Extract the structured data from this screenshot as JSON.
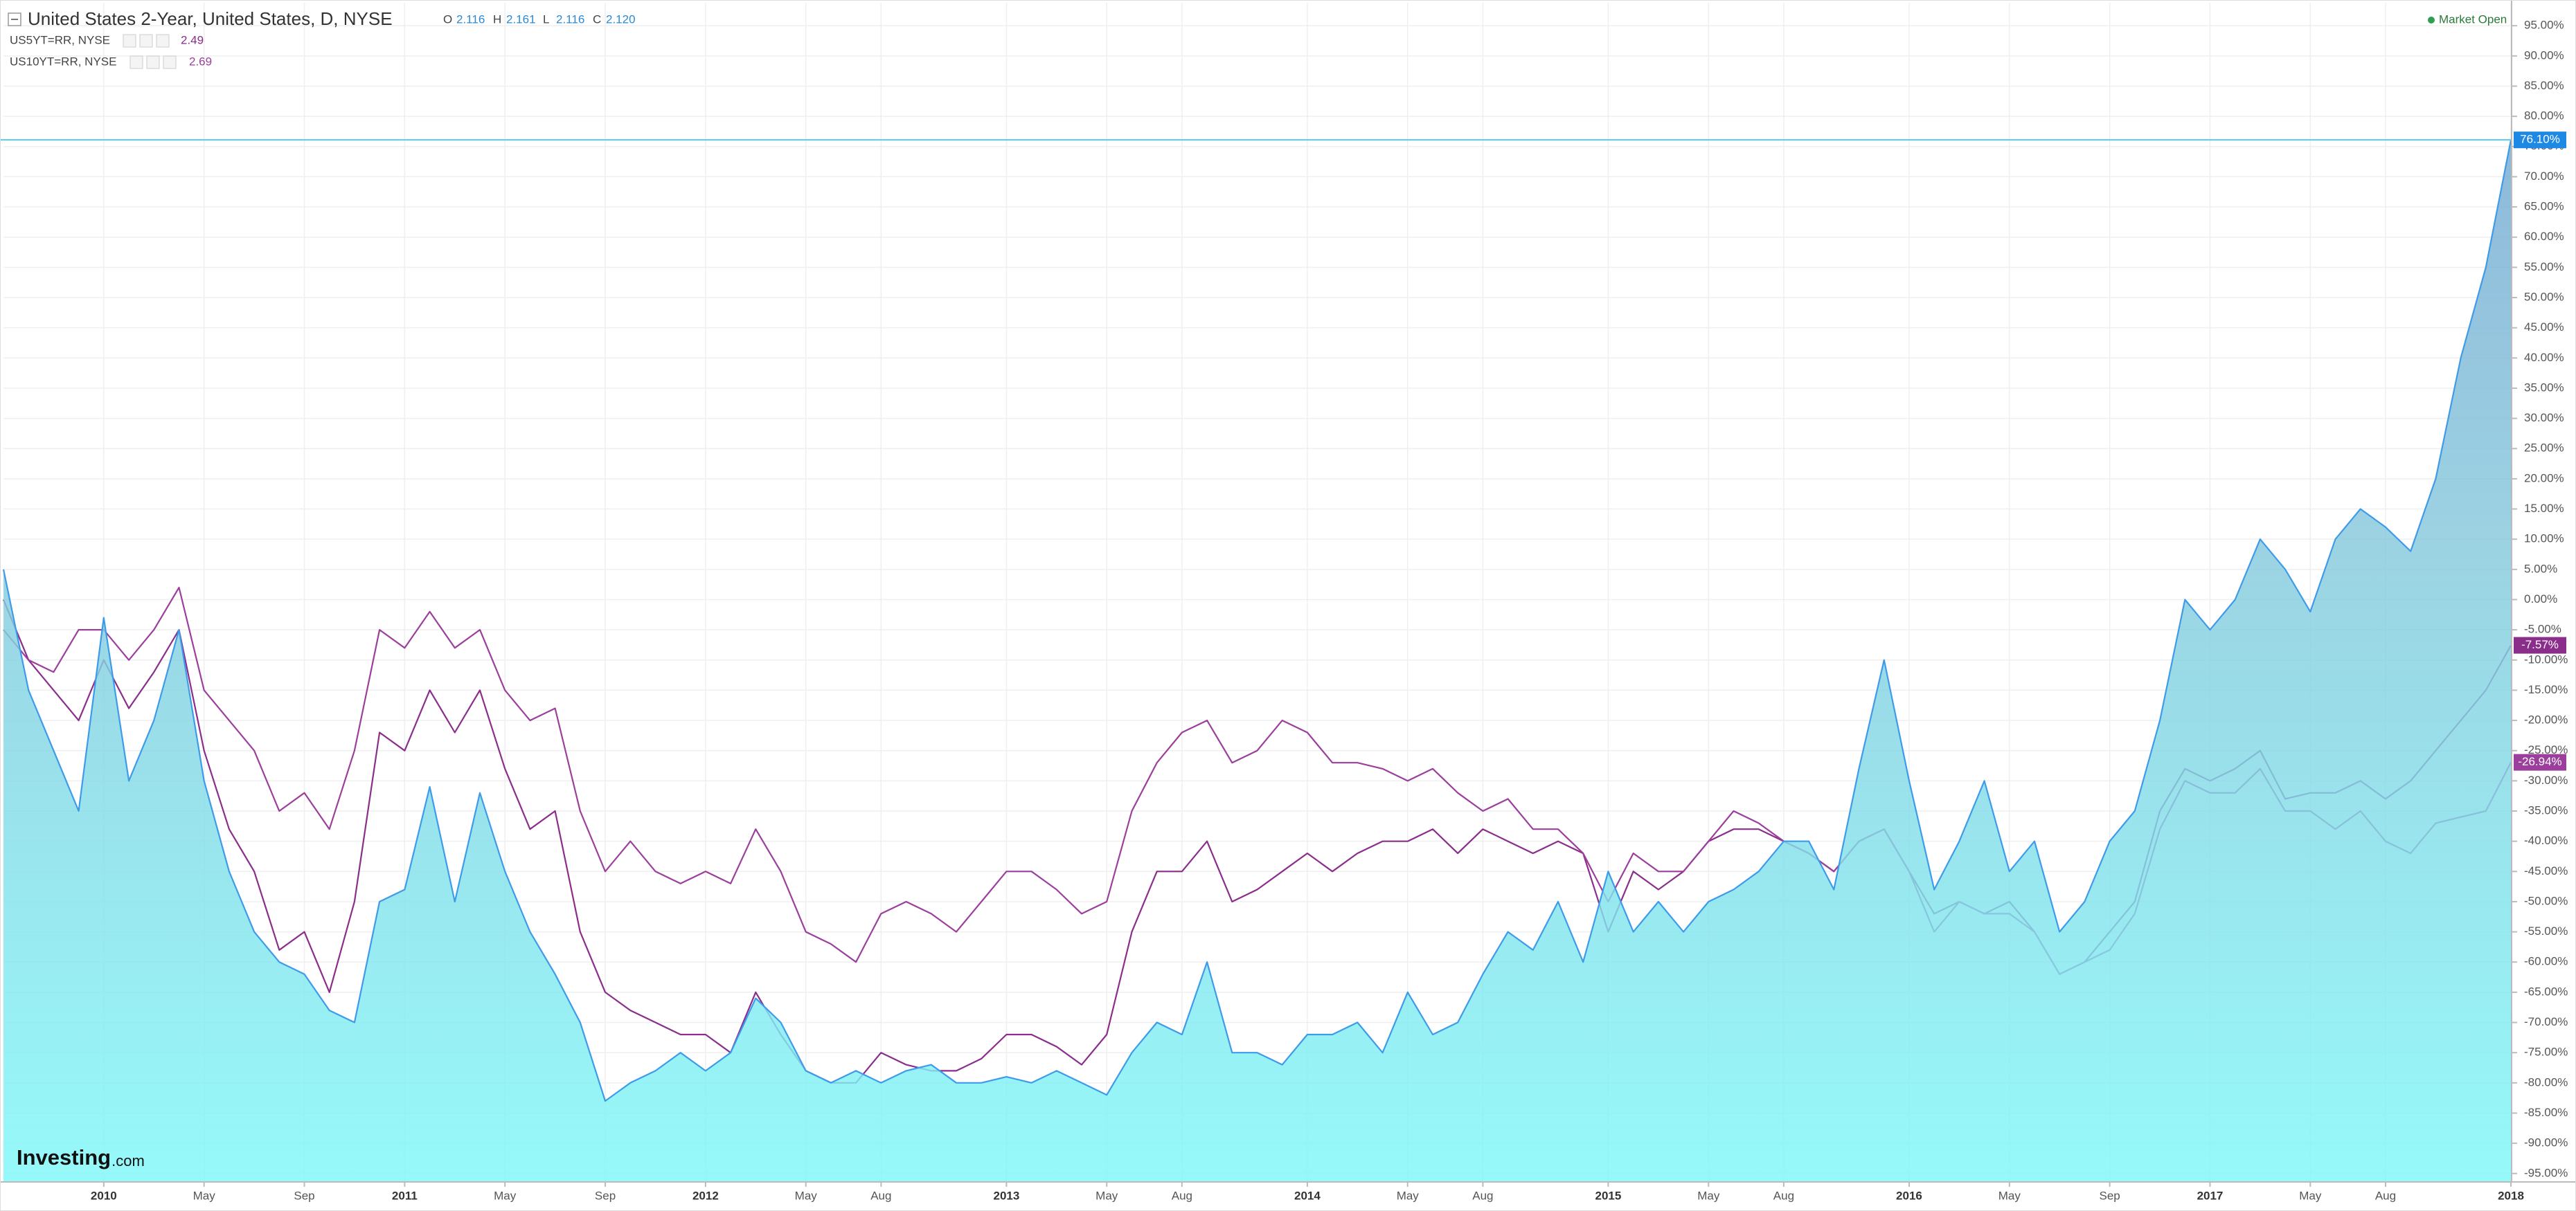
{
  "chart_data": {
    "type": "line",
    "status": "Market Open",
    "logo": {
      "brand": "Investing",
      "suffix": ".com"
    },
    "ohlc": [
      {
        "name": "O",
        "value": 2.116
      },
      {
        "name": "H",
        "value": 2.161
      },
      {
        "name": "L",
        "value": 2.116
      },
      {
        "name": "C",
        "value": 2.12,
        "label": "2.120"
      }
    ],
    "x": [
      "2009-09",
      "2009-10",
      "2009-11",
      "2009-12",
      "2010-01",
      "2010-02",
      "2010-03",
      "2010-04",
      "2010-05",
      "2010-06",
      "2010-07",
      "2010-08",
      "2010-09",
      "2010-10",
      "2010-11",
      "2010-12",
      "2011-01",
      "2011-02",
      "2011-03",
      "2011-04",
      "2011-05",
      "2011-06",
      "2011-07",
      "2011-08",
      "2011-09",
      "2011-10",
      "2011-11",
      "2011-12",
      "2012-01",
      "2012-02",
      "2012-03",
      "2012-04",
      "2012-05",
      "2012-06",
      "2012-07",
      "2012-08",
      "2012-09",
      "2012-10",
      "2012-11",
      "2012-12",
      "2013-01",
      "2013-02",
      "2013-03",
      "2013-04",
      "2013-05",
      "2013-06",
      "2013-07",
      "2013-08",
      "2013-09",
      "2013-10",
      "2013-11",
      "2013-12",
      "2014-01",
      "2014-02",
      "2014-03",
      "2014-04",
      "2014-05",
      "2014-06",
      "2014-07",
      "2014-08",
      "2014-09",
      "2014-10",
      "2014-11",
      "2014-12",
      "2015-01",
      "2015-02",
      "2015-03",
      "2015-04",
      "2015-05",
      "2015-06",
      "2015-07",
      "2015-08",
      "2015-09",
      "2015-10",
      "2015-11",
      "2015-12",
      "2016-01",
      "2016-02",
      "2016-03",
      "2016-04",
      "2016-05",
      "2016-06",
      "2016-07",
      "2016-08",
      "2016-09",
      "2016-10",
      "2016-11",
      "2016-12",
      "2017-01",
      "2017-02",
      "2017-03",
      "2017-04",
      "2017-05",
      "2017-06",
      "2017-07",
      "2017-08",
      "2017-09",
      "2017-10",
      "2017-11",
      "2017-12",
      "2018-01"
    ],
    "series": [
      {
        "name": "United States 2-Year, United States, D, NYSE",
        "color": "#3d9be9",
        "area": true,
        "last_label": "76.10%",
        "values": [
          5,
          -15,
          -25,
          -35,
          -3,
          -30,
          -20,
          -5,
          -30,
          -45,
          -55,
          -60,
          -62,
          -68,
          -70,
          -50,
          -48,
          -31,
          -50,
          -32,
          -45,
          -55,
          -62,
          -70,
          -83,
          -80,
          -78,
          -75,
          -78,
          -75,
          -66,
          -70,
          -78,
          -80,
          -78,
          -80,
          -78,
          -77,
          -80,
          -80,
          -79,
          -80,
          -78,
          -80,
          -82,
          -75,
          -70,
          -72,
          -60,
          -75,
          -75,
          -77,
          -72,
          -72,
          -70,
          -75,
          -65,
          -72,
          -70,
          -62,
          -55,
          -58,
          -50,
          -60,
          -45,
          -55,
          -50,
          -55,
          -50,
          -48,
          -45,
          -40,
          -40,
          -48,
          -28,
          -10,
          -30,
          -48,
          -40,
          -30,
          -45,
          -40,
          -55,
          -50,
          -40,
          -35,
          -20,
          0,
          -5,
          0,
          10,
          5,
          -2,
          10,
          15,
          12,
          8,
          20,
          40,
          55,
          76.1
        ]
      },
      {
        "name": "US5YT=RR, NYSE",
        "color": "#8b2d8b",
        "quote": 2.49,
        "last_label": "-7.57%",
        "values": [
          0,
          -10,
          -15,
          -20,
          -10,
          -18,
          -12,
          -5,
          -25,
          -38,
          -45,
          -58,
          -55,
          -65,
          -50,
          -22,
          -25,
          -15,
          -22,
          -15,
          -28,
          -38,
          -35,
          -55,
          -65,
          -68,
          -70,
          -72,
          -72,
          -75,
          -65,
          -72,
          -78,
          -80,
          -80,
          -75,
          -77,
          -78,
          -78,
          -76,
          -72,
          -72,
          -74,
          -77,
          -72,
          -55,
          -45,
          -45,
          -40,
          -50,
          -48,
          -45,
          -42,
          -45,
          -42,
          -40,
          -40,
          -38,
          -42,
          -38,
          -40,
          -42,
          -40,
          -42,
          -55,
          -45,
          -48,
          -45,
          -40,
          -38,
          -38,
          -40,
          -42,
          -45,
          -40,
          -38,
          -45,
          -52,
          -50,
          -52,
          -50,
          -55,
          -62,
          -60,
          -55,
          -50,
          -35,
          -28,
          -30,
          -28,
          -25,
          -33,
          -32,
          -32,
          -30,
          -33,
          -30,
          -25,
          -20,
          -15,
          -7.57
        ]
      },
      {
        "name": "US10YT=RR, NYSE",
        "color": "#9c3f9c",
        "quote": 2.69,
        "last_label": "-26.94%",
        "values": [
          -5,
          -10,
          -12,
          -5,
          -5,
          -10,
          -5,
          2,
          -15,
          -20,
          -25,
          -35,
          -32,
          -38,
          -25,
          -5,
          -8,
          -2,
          -8,
          -5,
          -15,
          -20,
          -18,
          -35,
          -45,
          -40,
          -45,
          -47,
          -45,
          -47,
          -38,
          -45,
          -55,
          -57,
          -60,
          -52,
          -50,
          -52,
          -55,
          -50,
          -45,
          -45,
          -48,
          -52,
          -50,
          -35,
          -27,
          -22,
          -20,
          -27,
          -25,
          -20,
          -22,
          -27,
          -27,
          -28,
          -30,
          -28,
          -32,
          -35,
          -33,
          -38,
          -38,
          -42,
          -50,
          -42,
          -45,
          -45,
          -40,
          -35,
          -37,
          -40,
          -42,
          -45,
          -40,
          -38,
          -45,
          -55,
          -50,
          -52,
          -52,
          -55,
          -62,
          -60,
          -58,
          -52,
          -38,
          -30,
          -32,
          -32,
          -28,
          -35,
          -35,
          -38,
          -35,
          -40,
          -42,
          -37,
          -36,
          -35,
          -26.94
        ]
      }
    ],
    "xlim": [
      "2009-09",
      "2018-01"
    ],
    "xticks": [
      {
        "value": "2010-01",
        "label": "2010"
      },
      {
        "value": "2010-05",
        "label": "May"
      },
      {
        "value": "2010-09",
        "label": "Sep"
      },
      {
        "value": "2011-01",
        "label": "2011"
      },
      {
        "value": "2011-05",
        "label": "May"
      },
      {
        "value": "2011-09",
        "label": "Sep"
      },
      {
        "value": "2012-01",
        "label": "2012"
      },
      {
        "value": "2012-05",
        "label": "May"
      },
      {
        "value": "2012-08",
        "label": "Aug"
      },
      {
        "value": "2013-01",
        "label": "2013"
      },
      {
        "value": "2013-05",
        "label": "May"
      },
      {
        "value": "2013-08",
        "label": "Aug"
      },
      {
        "value": "2014-01",
        "label": "2014"
      },
      {
        "value": "2014-05",
        "label": "May"
      },
      {
        "value": "2014-08",
        "label": "Aug"
      },
      {
        "value": "2015-01",
        "label": "2015"
      },
      {
        "value": "2015-05",
        "label": "May"
      },
      {
        "value": "2015-08",
        "label": "Aug"
      },
      {
        "value": "2016-01",
        "label": "2016"
      },
      {
        "value": "2016-05",
        "label": "May"
      },
      {
        "value": "2016-09",
        "label": "Sep"
      },
      {
        "value": "2017-01",
        "label": "2017"
      },
      {
        "value": "2017-05",
        "label": "May"
      },
      {
        "value": "2017-08",
        "label": "Aug"
      },
      {
        "value": "2018-01",
        "label": "2018"
      }
    ],
    "ylim": [
      -96.4,
      98.8
    ],
    "yticks": [
      {
        "value": 95,
        "label": "95.00%"
      },
      {
        "value": 90,
        "label": "90.00%"
      },
      {
        "value": 85,
        "label": "85.00%"
      },
      {
        "value": 80,
        "label": "80.00%"
      },
      {
        "value": 75,
        "label": "75.00%"
      },
      {
        "value": 70,
        "label": "70.00%"
      },
      {
        "value": 65,
        "label": "65.00%"
      },
      {
        "value": 60,
        "label": "60.00%"
      },
      {
        "value": 55,
        "label": "55.00%"
      },
      {
        "value": 50,
        "label": "50.00%"
      },
      {
        "value": 45,
        "label": "45.00%"
      },
      {
        "value": 40,
        "label": "40.00%"
      },
      {
        "value": 35,
        "label": "35.00%"
      },
      {
        "value": 30,
        "label": "30.00%"
      },
      {
        "value": 25,
        "label": "25.00%"
      },
      {
        "value": 20,
        "label": "20.00%"
      },
      {
        "value": 15,
        "label": "15.00%"
      },
      {
        "value": 10,
        "label": "10.00%"
      },
      {
        "value": 5,
        "label": "5.00%"
      },
      {
        "value": 0,
        "label": "0.00%"
      },
      {
        "value": -5,
        "label": "-5.00%"
      },
      {
        "value": -10,
        "label": "-10.00%"
      },
      {
        "value": -15,
        "label": "-15.00%"
      },
      {
        "value": -20,
        "label": "-20.00%"
      },
      {
        "value": -25,
        "label": "-25.00%"
      },
      {
        "value": -30,
        "label": "-30.00%"
      },
      {
        "value": -35,
        "label": "-35.00%"
      },
      {
        "value": -40,
        "label": "-40.00%"
      },
      {
        "value": -45,
        "label": "-45.00%"
      },
      {
        "value": -50,
        "label": "-50.00%"
      },
      {
        "value": -55,
        "label": "-55.00%"
      },
      {
        "value": -60,
        "label": "-60.00%"
      },
      {
        "value": -65,
        "label": "-65.00%"
      },
      {
        "value": -70,
        "label": "-70.00%"
      },
      {
        "value": -75,
        "label": "-75.00%"
      },
      {
        "value": -80,
        "label": "-80.00%"
      },
      {
        "value": -85,
        "label": "-85.00%"
      },
      {
        "value": -90,
        "label": "-90.00%"
      },
      {
        "value": -95,
        "label": "-95.00%"
      }
    ],
    "grid": true
  }
}
